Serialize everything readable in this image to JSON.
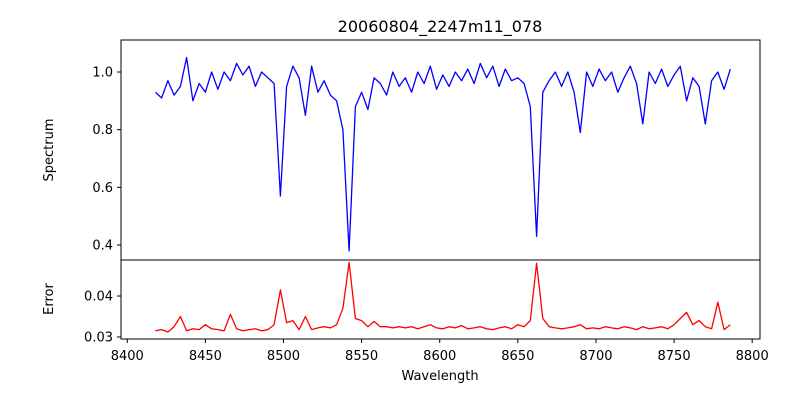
{
  "chart_data": {
    "type": "line",
    "title": "20060804_2247m11_078",
    "xlabel": "Wavelength",
    "xlim": [
      8396,
      8805
    ],
    "xticks": [
      8400,
      8450,
      8500,
      8550,
      8600,
      8650,
      8700,
      8750,
      8800
    ],
    "x": [
      8418,
      8422,
      8426,
      8430,
      8434,
      8438,
      8442,
      8446,
      8450,
      8454,
      8458,
      8462,
      8466,
      8470,
      8474,
      8478,
      8482,
      8486,
      8490,
      8494,
      8498,
      8502,
      8506,
      8510,
      8514,
      8518,
      8522,
      8526,
      8530,
      8534,
      8538,
      8542,
      8546,
      8550,
      8554,
      8558,
      8562,
      8566,
      8570,
      8574,
      8578,
      8582,
      8586,
      8590,
      8594,
      8598,
      8602,
      8606,
      8610,
      8614,
      8618,
      8622,
      8626,
      8630,
      8634,
      8638,
      8642,
      8646,
      8650,
      8654,
      8658,
      8662,
      8666,
      8670,
      8674,
      8678,
      8682,
      8686,
      8690,
      8694,
      8698,
      8702,
      8706,
      8710,
      8714,
      8718,
      8722,
      8726,
      8730,
      8734,
      8738,
      8742,
      8746,
      8750,
      8754,
      8758,
      8762,
      8766,
      8770,
      8774,
      8778,
      8782,
      8786
    ],
    "panels": [
      {
        "ylabel": "Spectrum",
        "ylim": [
          0.348,
          1.111
        ],
        "yticks": [
          "0.4",
          "0.6",
          "0.8",
          "1.0"
        ],
        "series": [
          {
            "name": "Spectrum",
            "color": "#0000ff",
            "values": [
              0.93,
              0.91,
              0.97,
              0.92,
              0.95,
              1.05,
              0.9,
              0.96,
              0.93,
              1.0,
              0.94,
              1.0,
              0.97,
              1.03,
              0.99,
              1.02,
              0.95,
              1.0,
              0.98,
              0.96,
              0.57,
              0.95,
              1.02,
              0.98,
              0.85,
              1.02,
              0.93,
              0.97,
              0.92,
              0.9,
              0.8,
              0.38,
              0.88,
              0.93,
              0.87,
              0.98,
              0.96,
              0.92,
              1.0,
              0.95,
              0.98,
              0.93,
              1.0,
              0.96,
              1.02,
              0.94,
              0.99,
              0.95,
              1.0,
              0.97,
              1.01,
              0.96,
              1.03,
              0.98,
              1.02,
              0.95,
              1.01,
              0.97,
              0.98,
              0.96,
              0.88,
              0.43,
              0.93,
              0.97,
              1.0,
              0.95,
              1.0,
              0.93,
              0.79,
              1.0,
              0.95,
              1.01,
              0.97,
              1.0,
              0.93,
              0.98,
              1.02,
              0.96,
              0.82,
              1.0,
              0.96,
              1.01,
              0.95,
              0.99,
              1.02,
              0.9,
              0.98,
              0.95,
              0.82,
              0.97,
              1.0,
              0.94,
              1.01
            ]
          }
        ]
      },
      {
        "ylabel": "Error",
        "ylim": [
          0.0295,
          0.0488
        ],
        "yticks": [
          "0.03",
          "0.04"
        ],
        "series": [
          {
            "name": "Error",
            "color": "#ff0000",
            "values": [
              0.0315,
              0.0318,
              0.0312,
              0.0325,
              0.035,
              0.0315,
              0.032,
              0.0318,
              0.033,
              0.032,
              0.0318,
              0.0315,
              0.0355,
              0.032,
              0.0315,
              0.0318,
              0.032,
              0.0315,
              0.0318,
              0.033,
              0.0415,
              0.0335,
              0.034,
              0.0318,
              0.035,
              0.0318,
              0.0322,
              0.0325,
              0.0322,
              0.033,
              0.037,
              0.0482,
              0.0345,
              0.034,
              0.0325,
              0.0338,
              0.0325,
              0.0325,
              0.0322,
              0.0325,
              0.0322,
              0.0325,
              0.032,
              0.0325,
              0.033,
              0.0322,
              0.032,
              0.0325,
              0.0322,
              0.0328,
              0.032,
              0.0322,
              0.0325,
              0.032,
              0.0318,
              0.0322,
              0.0325,
              0.032,
              0.033,
              0.0325,
              0.034,
              0.048,
              0.0345,
              0.0325,
              0.0322,
              0.032,
              0.0322,
              0.0325,
              0.033,
              0.032,
              0.0322,
              0.032,
              0.0325,
              0.0322,
              0.032,
              0.0325,
              0.0322,
              0.0318,
              0.0325,
              0.032,
              0.0322,
              0.0325,
              0.032,
              0.033,
              0.0345,
              0.036,
              0.033,
              0.034,
              0.0325,
              0.032,
              0.0385,
              0.0318,
              0.033
            ]
          }
        ]
      }
    ]
  }
}
